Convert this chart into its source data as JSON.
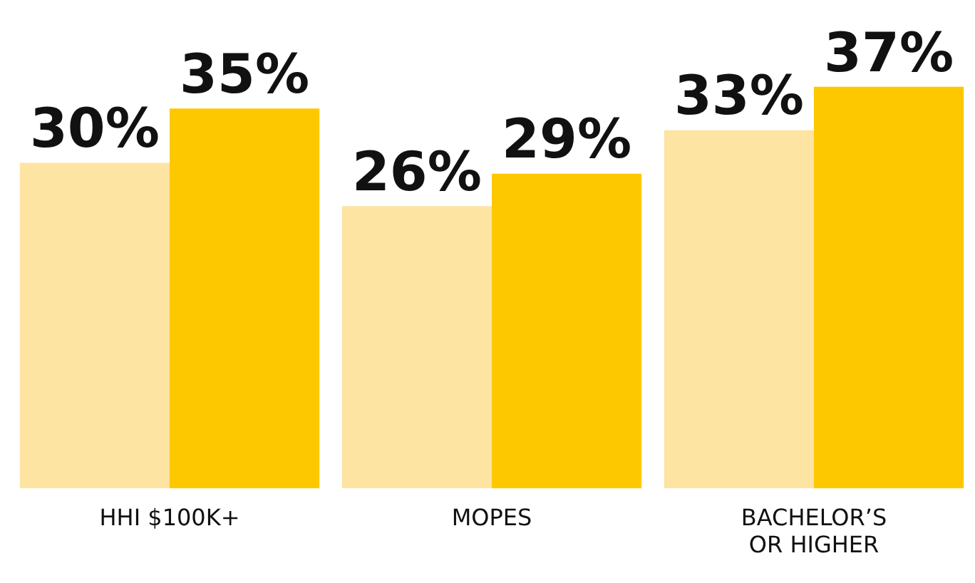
{
  "chart_data": {
    "type": "bar",
    "categories": [
      "HHI $100K+",
      "MOPES",
      "BACHELOR’S OR HIGHER"
    ],
    "series": [
      {
        "color": "#fde4a2",
        "values": [
          30,
          26,
          33
        ],
        "value_labels": [
          "30%",
          "26%",
          "33%"
        ]
      },
      {
        "color": "#fec800",
        "values": [
          35,
          29,
          37
        ],
        "value_labels": [
          "35%",
          "29%",
          "37%"
        ]
      }
    ],
    "grid": false,
    "legend": false
  }
}
